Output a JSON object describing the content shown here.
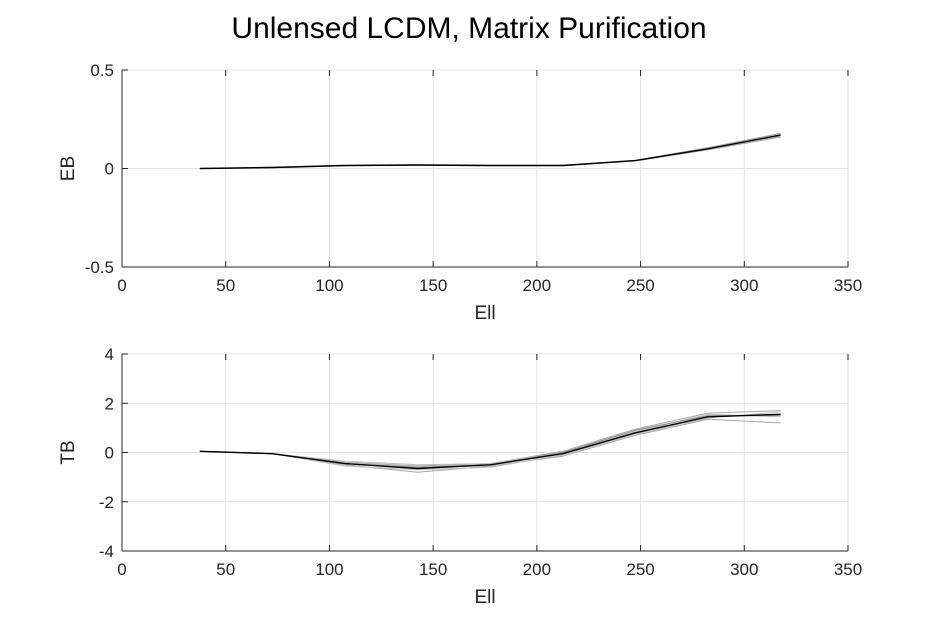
{
  "figure": {
    "title": "Unlensed LCDM, Matrix Purification"
  },
  "chart_data": [
    {
      "type": "line",
      "ylabel": "EB",
      "xlabel": "Ell",
      "xlim": [
        0,
        350
      ],
      "ylim": [
        -0.5,
        0.5
      ],
      "xticks": [
        0,
        50,
        100,
        150,
        200,
        250,
        300,
        350
      ],
      "xtick_labels": [
        "0",
        "50",
        "100",
        "150",
        "200",
        "250",
        "300",
        "350"
      ],
      "yticks": [
        -0.5,
        0,
        0.5
      ],
      "ytick_labels": [
        "-0.5",
        "0",
        "0.5"
      ],
      "grid": true,
      "x": [
        37.5,
        72.5,
        107.5,
        142.5,
        177.5,
        212.5,
        247.5,
        282.5,
        317.5
      ],
      "series": [
        {
          "color": "#000000",
          "values": [
            0.0,
            0.005,
            0.015,
            0.018,
            0.015,
            0.015,
            0.04,
            0.1,
            0.17
          ]
        },
        {
          "color": "#9a9a9a",
          "values": [
            0.0,
            0.004,
            0.014,
            0.017,
            0.014,
            0.014,
            0.038,
            0.095,
            0.16
          ]
        },
        {
          "color": "#9a9a9a",
          "values": [
            0.0,
            0.006,
            0.016,
            0.019,
            0.016,
            0.016,
            0.042,
            0.105,
            0.178
          ]
        },
        {
          "color": "#b5b5b5",
          "values": [
            0.0,
            0.005,
            0.015,
            0.018,
            0.015,
            0.015,
            0.039,
            0.098,
            0.165
          ]
        }
      ]
    },
    {
      "type": "line",
      "ylabel": "TB",
      "xlabel": "Ell",
      "xlim": [
        0,
        350
      ],
      "ylim": [
        -4,
        4
      ],
      "xticks": [
        0,
        50,
        100,
        150,
        200,
        250,
        300,
        350
      ],
      "xtick_labels": [
        "0",
        "50",
        "100",
        "150",
        "200",
        "250",
        "300",
        "350"
      ],
      "yticks": [
        -4,
        -2,
        0,
        2,
        4
      ],
      "ytick_labels": [
        "-4",
        "-2",
        "0",
        "2",
        "4"
      ],
      "grid": true,
      "x": [
        37.5,
        72.5,
        107.5,
        142.5,
        177.5,
        212.5,
        247.5,
        282.5,
        317.5
      ],
      "series": [
        {
          "color": "#000000",
          "values": [
            0.05,
            -0.05,
            -0.45,
            -0.65,
            -0.5,
            -0.05,
            0.8,
            1.45,
            1.55
          ]
        },
        {
          "color": "#a6a6a6",
          "values": [
            0.05,
            -0.05,
            -0.4,
            -0.55,
            -0.45,
            0.05,
            0.95,
            1.6,
            1.7
          ]
        },
        {
          "color": "#a6a6a6",
          "values": [
            0.05,
            -0.05,
            -0.5,
            -0.8,
            -0.55,
            -0.15,
            0.7,
            1.35,
            1.2
          ]
        },
        {
          "color": "#bdbdbd",
          "values": [
            0.05,
            -0.05,
            -0.35,
            -0.5,
            -0.45,
            0.0,
            0.85,
            1.55,
            1.45
          ]
        },
        {
          "color": "#bdbdbd",
          "values": [
            0.05,
            -0.05,
            -0.55,
            -0.7,
            -0.6,
            -0.1,
            0.75,
            1.4,
            1.65
          ]
        },
        {
          "color": "#8c8c8c",
          "values": [
            0.05,
            -0.05,
            -0.45,
            -0.6,
            -0.5,
            0.0,
            0.9,
            1.5,
            1.5
          ]
        }
      ]
    }
  ]
}
